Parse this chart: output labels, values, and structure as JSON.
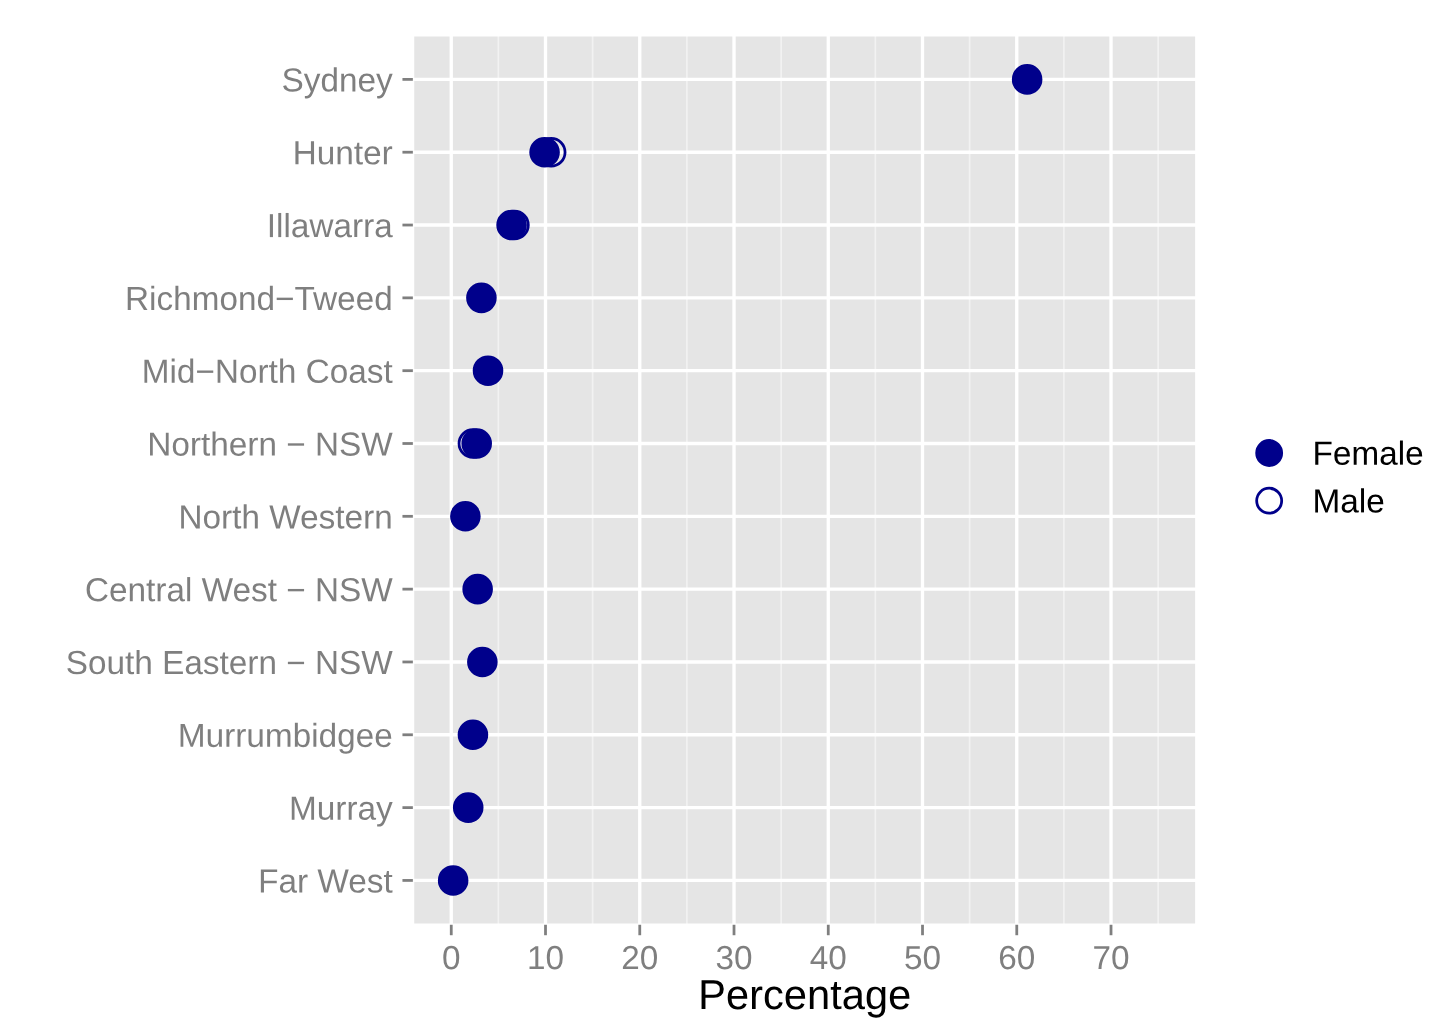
{
  "chart_data": {
    "type": "scatter",
    "orientation": "horizontal",
    "xlabel": "Percentage",
    "categories": [
      "Sydney",
      "Hunter",
      "Illawarra",
      "Richmond−Tweed",
      "Mid−North Coast",
      "Northern − NSW",
      "North Western",
      "Central West − NSW",
      "South Eastern − NSW",
      "Murrumbidgee",
      "Murray",
      "Far West"
    ],
    "series": [
      {
        "name": "Female",
        "color": "#00008b",
        "values": [
          61.1,
          9.9,
          6.4,
          3.2,
          3.9,
          2.7,
          1.5,
          2.8,
          3.3,
          2.3,
          1.8,
          0.2
        ]
      },
      {
        "name": "Male",
        "color": "#00008b",
        "values": [
          null,
          10.6,
          6.7,
          null,
          null,
          2.3,
          null,
          null,
          null,
          null,
          null,
          null
        ]
      }
    ],
    "xlim": [
      -4,
      79
    ],
    "xticks": [
      0,
      10,
      20,
      30,
      40,
      50,
      60,
      70
    ],
    "grid": true,
    "legend": "right",
    "marker": "circle"
  }
}
